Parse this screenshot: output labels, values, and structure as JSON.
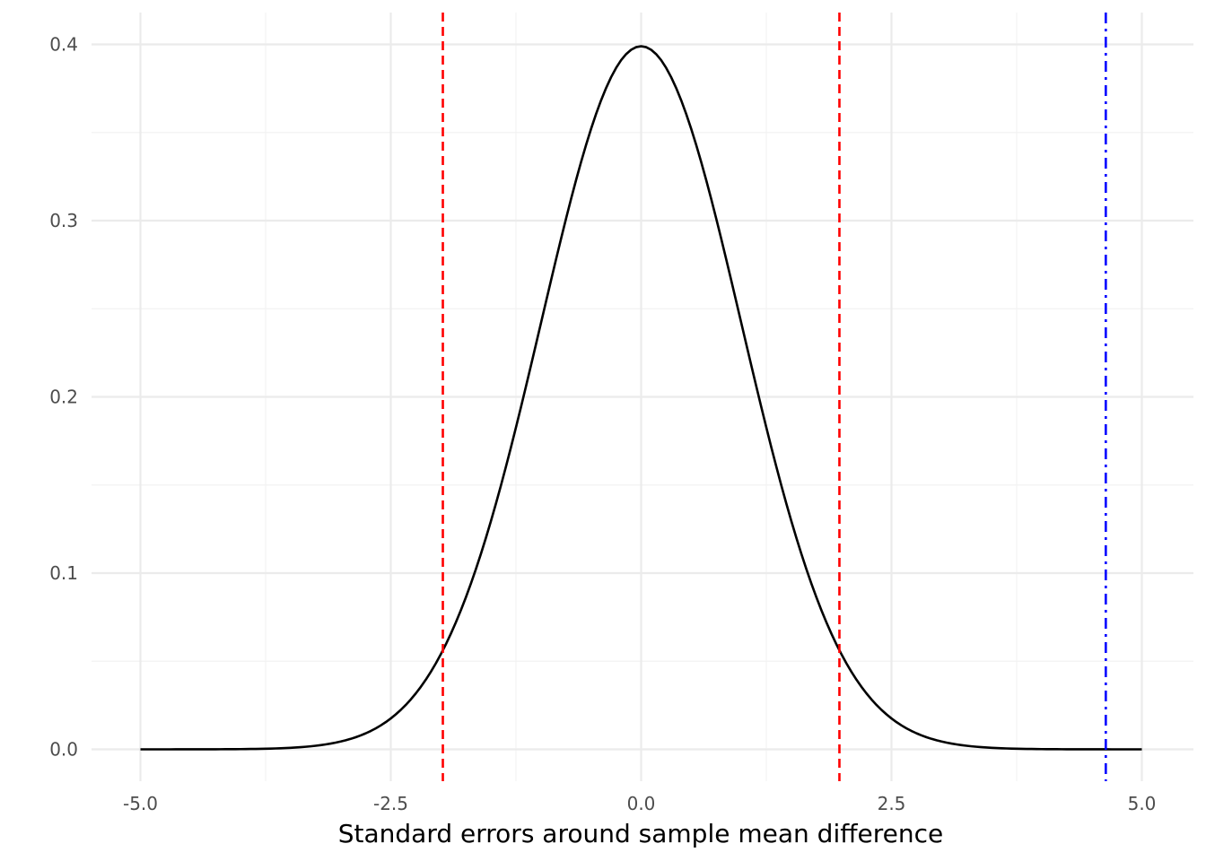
{
  "chart_data": {
    "type": "line",
    "title": "",
    "xlabel": "Standard errors around sample mean difference",
    "ylabel": "",
    "xlim": [
      -5.0,
      5.0
    ],
    "ylim": [
      0.0,
      0.4
    ],
    "x_ticks": [
      -5.0,
      -2.5,
      0.0,
      2.5,
      5.0
    ],
    "x_tick_labels": [
      "-5.0",
      "-2.5",
      "0.0",
      "2.5",
      "5.0"
    ],
    "y_ticks": [
      0.0,
      0.1,
      0.2,
      0.3,
      0.4
    ],
    "y_tick_labels": [
      "0.0",
      "0.1",
      "0.2",
      "0.3",
      "0.4"
    ],
    "grid": true,
    "legend": "none",
    "series": [
      {
        "kind": "standard normal density curve",
        "color": "#000000",
        "x": [
          -5.0,
          -4.5,
          -4.0,
          -3.5,
          -3.0,
          -2.75,
          -2.5,
          -2.25,
          -2.0,
          -1.75,
          -1.5,
          -1.25,
          -1.0,
          -0.75,
          -0.5,
          -0.25,
          0.0,
          0.25,
          0.5,
          0.75,
          1.0,
          1.25,
          1.5,
          1.75,
          2.0,
          2.25,
          2.5,
          2.75,
          3.0,
          3.5,
          4.0,
          4.5,
          5.0
        ],
        "y": [
          1.5e-06,
          1.6e-05,
          0.000134,
          0.000873,
          0.004432,
          0.009094,
          0.017528,
          0.03174,
          0.053991,
          0.086277,
          0.129518,
          0.182649,
          0.241971,
          0.301137,
          0.352065,
          0.386668,
          0.398942,
          0.386668,
          0.352065,
          0.301137,
          0.241971,
          0.182649,
          0.129518,
          0.086277,
          0.053991,
          0.03174,
          0.017528,
          0.009094,
          0.004432,
          0.000873,
          0.000134,
          1.6e-05,
          1.5e-06
        ]
      }
    ],
    "reference_lines": [
      {
        "x": -1.98,
        "color": "#ff0000",
        "style": "dashed"
      },
      {
        "x": 1.98,
        "color": "#ff0000",
        "style": "dashed"
      },
      {
        "x": 4.64,
        "color": "#0000ff",
        "style": "dot-dash"
      }
    ]
  }
}
